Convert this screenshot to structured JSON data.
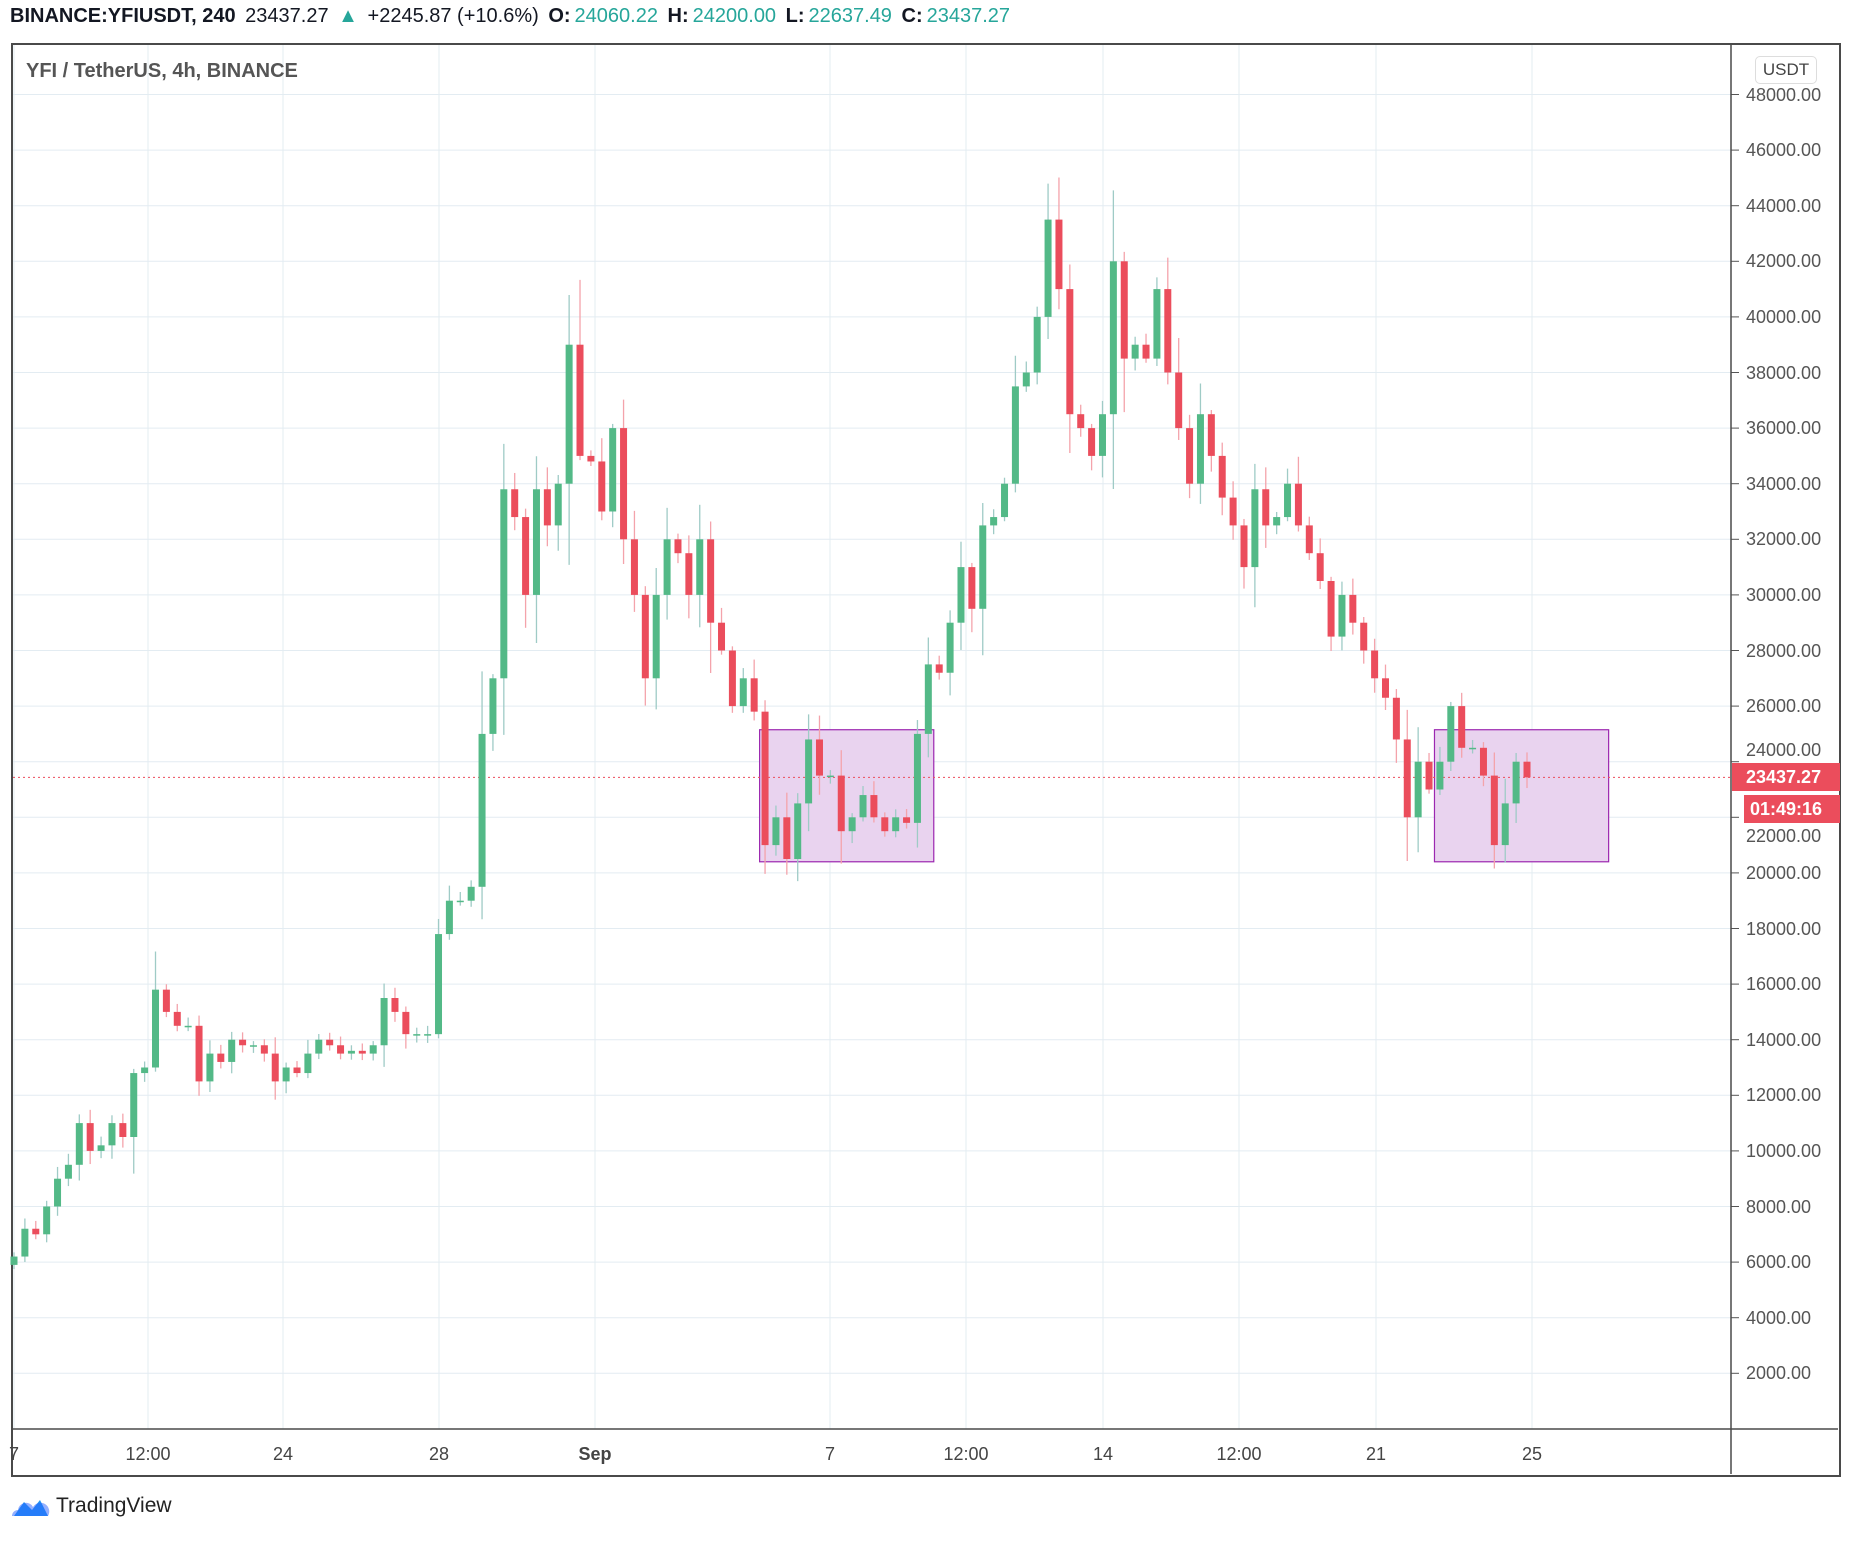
{
  "header": {
    "symbol": "BINANCE:YFIUSDT, 240",
    "last": "23437.27",
    "change": "+2245.87 (+10.6%)",
    "o_label": "O:",
    "o": "24060.22",
    "h_label": "H:",
    "h": "24200.00",
    "l_label": "L:",
    "l": "22637.49",
    "c_label": "C:",
    "c": "23437.27"
  },
  "legend": "YFI / TetherUS, 4h, BINANCE",
  "currency": "USDT",
  "price_badge": "23437.27",
  "countdown_badge": "01:49:16",
  "brand": "TradingView",
  "colors": {
    "up": "#53b987",
    "down": "#eb4d5c",
    "up_wick": "#9fcbc6",
    "down_wick": "#f4a3ab",
    "box_fill": "#e9d3ef",
    "box_border": "#9c27b0",
    "grid": "#e3ecf2"
  },
  "chart_data": {
    "type": "candlestick",
    "title": "YFI / TetherUS, 4h, BINANCE",
    "ylabel": "USDT",
    "ylim": [
      0,
      48000
    ],
    "y_ticks": [
      "48000.00",
      "46000.00",
      "44000.00",
      "42000.00",
      "40000.00",
      "38000.00",
      "36000.00",
      "34000.00",
      "32000.00",
      "30000.00",
      "28000.00",
      "26000.00",
      "24000.00",
      "22000.00",
      "20000.00",
      "18000.00",
      "16000.00",
      "14000.00",
      "12000.00",
      "10000.00",
      "8000.00",
      "6000.00",
      "4000.00",
      "2000.00"
    ],
    "x_ticks": [
      "7",
      "12:00",
      "24",
      "28",
      "Sep",
      "7",
      "12:00",
      "14",
      "12:00",
      "21",
      "25"
    ],
    "grid": true,
    "last_price": 23437.27,
    "first_open": 5900,
    "closes": [
      6.2,
      7.2,
      7.0,
      8.0,
      9.0,
      9.5,
      11,
      10,
      10.2,
      11,
      10.5,
      12.8,
      13,
      15.8,
      15,
      14.5,
      14.5,
      12.5,
      13.5,
      13.2,
      14,
      13.8,
      13.8,
      13.5,
      12.5,
      13,
      12.8,
      13.5,
      14,
      13.8,
      13.5,
      13.6,
      13.5,
      13.8,
      15.5,
      15,
      14.2,
      14.2,
      14.2,
      17.8,
      19,
      19,
      19.5,
      25,
      27,
      33.8,
      32.8,
      30,
      33.8,
      32.5,
      34,
      39,
      35,
      34.8,
      33,
      36,
      32,
      30,
      27,
      30,
      32,
      31.5,
      30,
      32,
      29,
      28,
      26,
      27,
      25.8,
      21,
      22,
      20.5,
      22.5,
      24.8,
      23.5,
      23.5,
      21.5,
      22,
      22.8,
      22,
      21.5,
      22,
      21.8,
      25,
      27.5,
      27.2,
      29,
      31,
      29.5,
      32.5,
      32.8,
      34,
      37.5,
      38,
      40,
      43.5,
      41,
      36.5,
      36,
      35,
      36.5,
      42,
      38.5,
      39,
      38.5,
      41,
      38,
      36,
      34,
      36.5,
      35,
      33.5,
      32.5,
      31,
      33.8,
      32.5,
      32.8,
      34,
      32.5,
      31.5,
      30.5,
      28.5,
      30,
      29,
      28,
      27,
      26.3,
      24.8,
      22,
      24,
      23,
      24,
      26,
      24.5,
      24.5,
      23.5,
      21,
      22.5,
      24,
      23.437
    ],
    "close_units": "thousands USDT",
    "boxes": [
      {
        "from_candle": 69,
        "to_candle": 84,
        "price_low": 20400,
        "price_high": 25150
      },
      {
        "from_candle": 131,
        "to_candle": 146,
        "price_low": 20400,
        "price_high": 25150
      }
    ]
  }
}
